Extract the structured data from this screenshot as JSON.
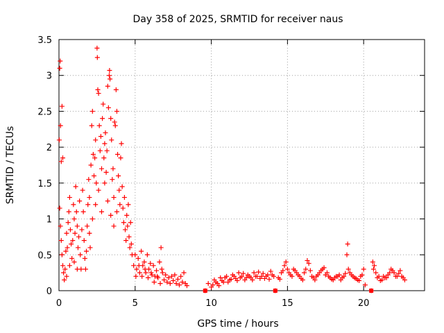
{
  "chart_data": {
    "type": "scatter",
    "title": "Day 358 of 2025, SRMTID for receiver naus",
    "xlabel": "GPS time / hours",
    "ylabel": "SRMTID / TECUs",
    "xlim": [
      0,
      24
    ],
    "ylim": [
      0,
      3.5
    ],
    "xticks": [
      0,
      5,
      10,
      15,
      20
    ],
    "xtick_labels": [
      "0",
      "5",
      "10",
      "15",
      "20"
    ],
    "yticks": [
      0,
      0.5,
      1,
      1.5,
      2,
      2.5,
      3,
      3.5
    ],
    "ytick_labels": [
      "0",
      "0.5",
      "1",
      "1.5",
      "2",
      "2.5",
      "3",
      "3.5"
    ],
    "grid": true,
    "marker": "+",
    "color": "#ff0000",
    "gaps_marked_at": [
      9.6,
      14.2,
      20.5
    ],
    "series": [
      {
        "name": "SRMTID",
        "points": [
          [
            0.02,
            2.1
          ],
          [
            0.05,
            3.1
          ],
          [
            0.08,
            3.2
          ],
          [
            0.1,
            2.3
          ],
          [
            0.15,
            1.8
          ],
          [
            0.2,
            2.57
          ],
          [
            0.25,
            1.85
          ],
          [
            0.05,
            1.15
          ],
          [
            0.1,
            0.9
          ],
          [
            0.15,
            0.7
          ],
          [
            0.2,
            0.5
          ],
          [
            0.25,
            0.35
          ],
          [
            0.3,
            0.25
          ],
          [
            0.35,
            0.15
          ],
          [
            0.4,
            0.3
          ],
          [
            0.45,
            0.55
          ],
          [
            0.5,
            0.8
          ],
          [
            0.55,
            0.6
          ],
          [
            0.6,
            0.95
          ],
          [
            0.65,
            1.1
          ],
          [
            0.7,
            1.3
          ],
          [
            0.75,
            0.85
          ],
          [
            0.8,
            0.65
          ],
          [
            0.85,
            0.45
          ],
          [
            0.9,
            0.7
          ],
          [
            0.95,
            1.2
          ],
          [
            1.0,
            1.0
          ],
          [
            1.05,
            0.8
          ],
          [
            1.1,
            1.45
          ],
          [
            1.15,
            1.1
          ],
          [
            1.2,
            0.9
          ],
          [
            1.25,
            0.6
          ],
          [
            1.3,
            0.75
          ],
          [
            1.35,
            1.25
          ],
          [
            1.4,
            0.5
          ],
          [
            1.45,
            0.3
          ],
          [
            1.5,
            0.85
          ],
          [
            1.55,
            1.4
          ],
          [
            1.6,
            1.1
          ],
          [
            1.65,
            0.7
          ],
          [
            1.7,
            0.45
          ],
          [
            1.75,
            0.3
          ],
          [
            1.8,
            0.55
          ],
          [
            1.85,
            0.9
          ],
          [
            1.9,
            1.2
          ],
          [
            1.95,
            1.55
          ],
          [
            2.0,
            0.8
          ],
          [
            2.05,
            0.6
          ],
          [
            2.1,
            1.75
          ],
          [
            2.15,
            2.3
          ],
          [
            2.2,
            2.5
          ],
          [
            2.25,
            1.9
          ],
          [
            2.3,
            1.6
          ],
          [
            2.35,
            1.85
          ],
          [
            2.4,
            2.1
          ],
          [
            2.45,
            1.5
          ],
          [
            2.5,
            3.38
          ],
          [
            2.52,
            3.25
          ],
          [
            2.55,
            2.8
          ],
          [
            2.6,
            2.75
          ],
          [
            2.65,
            2.3
          ],
          [
            2.7,
            1.95
          ],
          [
            2.75,
            2.15
          ],
          [
            2.8,
            1.7
          ],
          [
            2.85,
            2.4
          ],
          [
            2.9,
            2.6
          ],
          [
            2.95,
            1.85
          ],
          [
            3.0,
            2.05
          ],
          [
            3.05,
            2.2
          ],
          [
            3.1,
            1.65
          ],
          [
            3.15,
            1.95
          ],
          [
            3.2,
            2.85
          ],
          [
            3.25,
            2.55
          ],
          [
            3.3,
            3.0
          ],
          [
            3.32,
            3.07
          ],
          [
            3.35,
            2.95
          ],
          [
            3.4,
            2.4
          ],
          [
            3.45,
            2.1
          ],
          [
            3.5,
            1.55
          ],
          [
            3.55,
            1.7
          ],
          [
            3.6,
            1.3
          ],
          [
            3.65,
            2.35
          ],
          [
            3.7,
            2.3
          ],
          [
            3.75,
            2.8
          ],
          [
            3.8,
            2.5
          ],
          [
            3.85,
            1.9
          ],
          [
            3.9,
            1.6
          ],
          [
            3.95,
            1.4
          ],
          [
            4.0,
            1.2
          ],
          [
            4.05,
            1.85
          ],
          [
            4.1,
            2.05
          ],
          [
            4.15,
            1.45
          ],
          [
            4.2,
            1.15
          ],
          [
            4.25,
            0.95
          ],
          [
            4.3,
            1.3
          ],
          [
            4.35,
            0.85
          ],
          [
            4.4,
            0.7
          ],
          [
            4.45,
            1.05
          ],
          [
            4.5,
            0.9
          ],
          [
            4.55,
            1.2
          ],
          [
            4.6,
            0.75
          ],
          [
            4.65,
            0.6
          ],
          [
            4.7,
            0.95
          ],
          [
            4.75,
            0.65
          ],
          [
            4.8,
            0.5
          ],
          [
            2.0,
            1.3
          ],
          [
            2.2,
            1.0
          ],
          [
            2.4,
            1.2
          ],
          [
            2.6,
            1.4
          ],
          [
            2.8,
            1.1
          ],
          [
            3.0,
            1.5
          ],
          [
            3.2,
            1.25
          ],
          [
            3.4,
            1.05
          ],
          [
            3.6,
            0.9
          ],
          [
            3.8,
            1.1
          ],
          [
            1.0,
            0.4
          ],
          [
            1.2,
            0.3
          ],
          [
            0.5,
            0.2
          ],
          [
            0.7,
            0.35
          ],
          [
            4.9,
            0.35
          ],
          [
            5.0,
            0.5
          ],
          [
            5.1,
            0.3
          ],
          [
            5.2,
            0.45
          ],
          [
            5.3,
            0.25
          ],
          [
            5.4,
            0.55
          ],
          [
            5.5,
            0.35
          ],
          [
            5.6,
            0.4
          ],
          [
            5.7,
            0.25
          ],
          [
            5.8,
            0.5
          ],
          [
            5.9,
            0.3
          ],
          [
            6.0,
            0.38
          ],
          [
            6.1,
            0.22
          ],
          [
            6.2,
            0.35
          ],
          [
            6.3,
            0.2
          ],
          [
            6.4,
            0.28
          ],
          [
            6.5,
            0.18
          ],
          [
            6.6,
            0.4
          ],
          [
            6.7,
            0.6
          ],
          [
            6.75,
            0.3
          ],
          [
            6.8,
            0.25
          ],
          [
            6.9,
            0.15
          ],
          [
            7.0,
            0.22
          ],
          [
            7.1,
            0.12
          ],
          [
            7.2,
            0.18
          ],
          [
            7.3,
            0.1
          ],
          [
            7.4,
            0.2
          ],
          [
            7.5,
            0.14
          ],
          [
            7.6,
            0.22
          ],
          [
            7.7,
            0.1
          ],
          [
            7.8,
            0.16
          ],
          [
            7.9,
            0.08
          ],
          [
            8.0,
            0.2
          ],
          [
            8.1,
            0.12
          ],
          [
            8.2,
            0.25
          ],
          [
            8.3,
            0.1
          ],
          [
            8.4,
            0.07
          ],
          [
            5.05,
            0.2
          ],
          [
            5.25,
            0.35
          ],
          [
            5.45,
            0.2
          ],
          [
            5.65,
            0.3
          ],
          [
            5.85,
            0.18
          ],
          [
            6.05,
            0.25
          ],
          [
            6.25,
            0.12
          ],
          [
            6.45,
            0.2
          ],
          [
            6.65,
            0.1
          ],
          [
            9.6,
            0.0
          ],
          [
            9.8,
            0.1
          ],
          [
            10.0,
            0.05
          ],
          [
            10.2,
            0.15
          ],
          [
            10.4,
            0.1
          ],
          [
            10.6,
            0.18
          ],
          [
            10.8,
            0.12
          ],
          [
            11.0,
            0.2
          ],
          [
            11.2,
            0.15
          ],
          [
            11.4,
            0.22
          ],
          [
            11.6,
            0.17
          ],
          [
            11.8,
            0.25
          ],
          [
            12.0,
            0.2
          ],
          [
            12.2,
            0.15
          ],
          [
            12.4,
            0.22
          ],
          [
            12.6,
            0.18
          ],
          [
            12.8,
            0.25
          ],
          [
            13.0,
            0.2
          ],
          [
            13.2,
            0.17
          ],
          [
            13.4,
            0.24
          ],
          [
            13.6,
            0.2
          ],
          [
            13.8,
            0.16
          ],
          [
            14.0,
            0.22
          ],
          [
            14.2,
            0.0
          ],
          [
            14.4,
            0.18
          ],
          [
            14.6,
            0.25
          ],
          [
            14.8,
            0.35
          ],
          [
            14.9,
            0.4
          ],
          [
            15.0,
            0.3
          ],
          [
            15.2,
            0.22
          ],
          [
            15.4,
            0.3
          ],
          [
            15.6,
            0.25
          ],
          [
            15.8,
            0.2
          ],
          [
            16.0,
            0.15
          ],
          [
            16.2,
            0.3
          ],
          [
            16.3,
            0.42
          ],
          [
            16.4,
            0.38
          ],
          [
            16.6,
            0.2
          ],
          [
            16.8,
            0.15
          ],
          [
            17.0,
            0.22
          ],
          [
            17.2,
            0.28
          ],
          [
            17.4,
            0.32
          ],
          [
            17.6,
            0.25
          ],
          [
            17.8,
            0.18
          ],
          [
            18.0,
            0.15
          ],
          [
            18.2,
            0.2
          ],
          [
            18.4,
            0.22
          ],
          [
            18.6,
            0.18
          ],
          [
            18.8,
            0.24
          ],
          [
            18.9,
            0.5
          ],
          [
            18.95,
            0.65
          ],
          [
            19.0,
            0.3
          ],
          [
            19.2,
            0.22
          ],
          [
            19.4,
            0.18
          ],
          [
            19.6,
            0.15
          ],
          [
            19.8,
            0.2
          ],
          [
            20.0,
            0.3
          ],
          [
            20.1,
            0.08
          ],
          [
            20.5,
            0.0
          ],
          [
            20.6,
            0.4
          ],
          [
            20.7,
            0.35
          ],
          [
            20.8,
            0.25
          ],
          [
            21.0,
            0.2
          ],
          [
            21.2,
            0.15
          ],
          [
            21.4,
            0.18
          ],
          [
            21.6,
            0.22
          ],
          [
            21.8,
            0.3
          ],
          [
            22.0,
            0.25
          ],
          [
            22.2,
            0.2
          ],
          [
            22.4,
            0.28
          ],
          [
            22.6,
            0.18
          ],
          [
            22.7,
            0.15
          ],
          [
            10.1,
            0.08
          ],
          [
            10.3,
            0.12
          ],
          [
            10.5,
            0.07
          ],
          [
            10.7,
            0.14
          ],
          [
            10.9,
            0.18
          ],
          [
            11.1,
            0.12
          ],
          [
            11.3,
            0.16
          ],
          [
            11.5,
            0.2
          ],
          [
            11.7,
            0.14
          ],
          [
            11.9,
            0.18
          ],
          [
            12.1,
            0.24
          ],
          [
            12.3,
            0.18
          ],
          [
            12.5,
            0.2
          ],
          [
            12.7,
            0.15
          ],
          [
            12.9,
            0.2
          ],
          [
            13.1,
            0.26
          ],
          [
            13.3,
            0.2
          ],
          [
            13.5,
            0.17
          ],
          [
            13.7,
            0.22
          ],
          [
            13.9,
            0.27
          ],
          [
            14.1,
            0.2
          ],
          [
            14.5,
            0.16
          ],
          [
            14.7,
            0.28
          ],
          [
            15.1,
            0.25
          ],
          [
            15.3,
            0.2
          ],
          [
            15.5,
            0.28
          ],
          [
            15.7,
            0.22
          ],
          [
            15.9,
            0.17
          ],
          [
            16.1,
            0.25
          ],
          [
            16.5,
            0.28
          ],
          [
            16.7,
            0.18
          ],
          [
            16.9,
            0.2
          ],
          [
            17.1,
            0.25
          ],
          [
            17.3,
            0.3
          ],
          [
            17.5,
            0.22
          ],
          [
            17.7,
            0.2
          ],
          [
            17.9,
            0.16
          ],
          [
            18.1,
            0.18
          ],
          [
            18.3,
            0.2
          ],
          [
            18.5,
            0.15
          ],
          [
            18.7,
            0.2
          ],
          [
            19.1,
            0.25
          ],
          [
            19.3,
            0.2
          ],
          [
            19.5,
            0.17
          ],
          [
            19.7,
            0.14
          ],
          [
            19.9,
            0.22
          ],
          [
            20.65,
            0.3
          ],
          [
            20.9,
            0.18
          ],
          [
            21.1,
            0.14
          ],
          [
            21.3,
            0.2
          ],
          [
            21.5,
            0.18
          ],
          [
            21.7,
            0.25
          ],
          [
            21.9,
            0.28
          ],
          [
            22.1,
            0.2
          ],
          [
            22.3,
            0.24
          ],
          [
            22.5,
            0.2
          ]
        ]
      }
    ]
  }
}
